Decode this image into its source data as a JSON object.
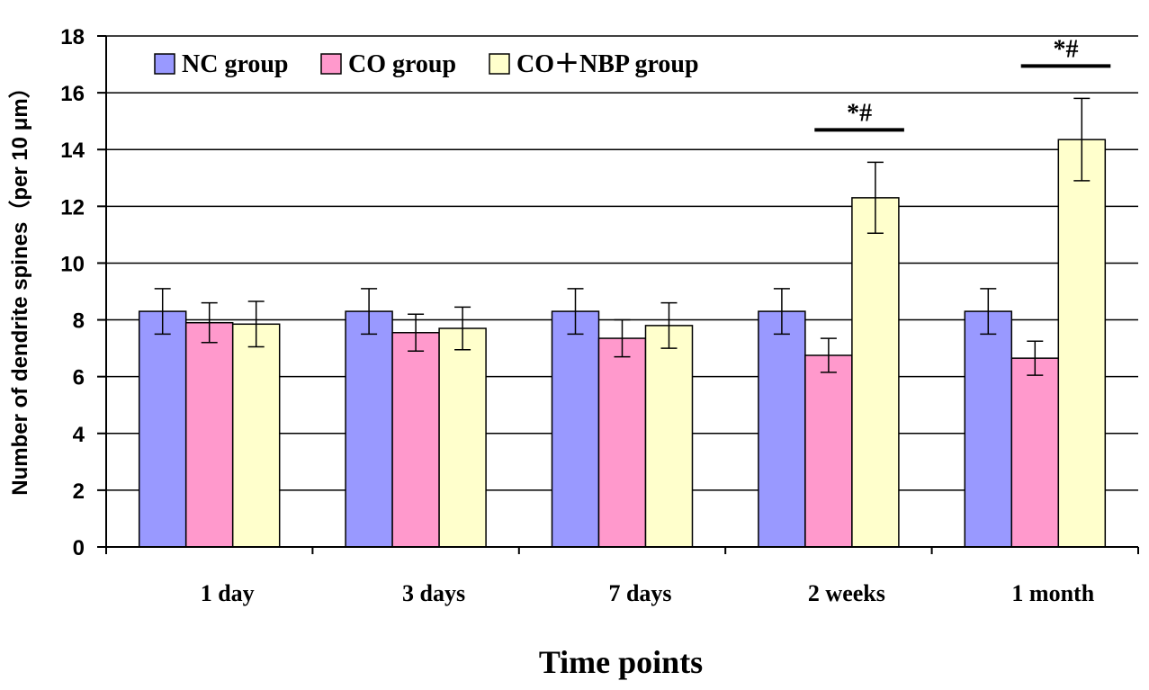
{
  "chart_data": {
    "type": "bar",
    "title": "",
    "xlabel": "Time points",
    "ylabel": "Number of dendrite spines（per 10 μm）",
    "ylim": [
      0,
      18
    ],
    "yticks": [
      0,
      2,
      4,
      6,
      8,
      10,
      12,
      14,
      16,
      18
    ],
    "grid": true,
    "legend_position": "top-left",
    "categories": [
      "1 day",
      "3 days",
      "7 days",
      "2 weeks",
      "1 month"
    ],
    "series": [
      {
        "name": "NC group",
        "color": "#9999FF",
        "values": [
          8.3,
          8.3,
          8.3,
          8.3,
          8.3
        ],
        "errors": [
          0.8,
          0.8,
          0.8,
          0.8,
          0.8
        ]
      },
      {
        "name": "CO group",
        "color": "#FF99CC",
        "values": [
          7.9,
          7.55,
          7.35,
          6.75,
          6.65
        ],
        "errors": [
          0.7,
          0.65,
          0.65,
          0.6,
          0.6
        ]
      },
      {
        "name": "CO＋NBP group",
        "color": "#FFFFCC",
        "values": [
          7.85,
          7.7,
          7.8,
          12.3,
          14.35
        ],
        "errors": [
          0.8,
          0.75,
          0.8,
          1.25,
          1.45
        ]
      }
    ],
    "annotations": [
      {
        "category": "2 weeks",
        "text": "*#"
      },
      {
        "category": "1 month",
        "text": "*#"
      }
    ]
  }
}
